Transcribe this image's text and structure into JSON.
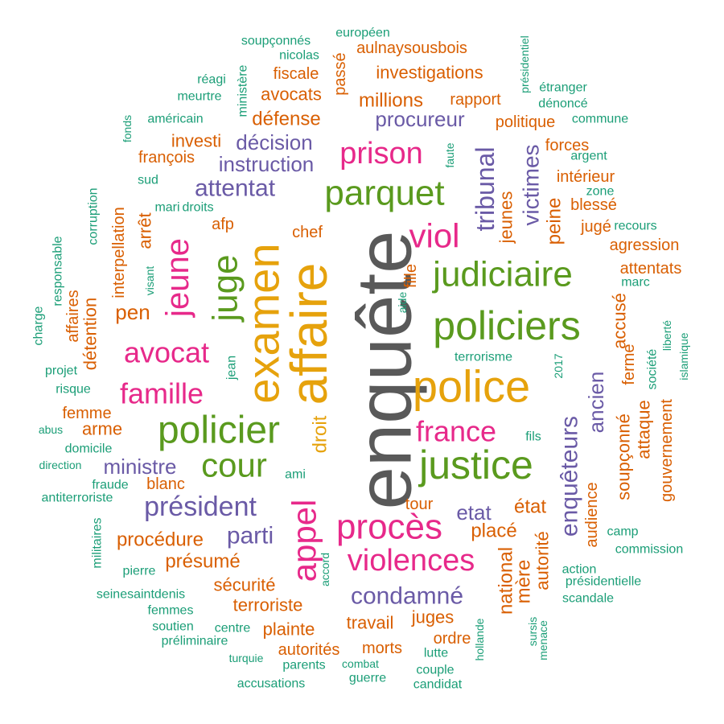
{
  "palette": {
    "grey": "#595959",
    "orange": "#d95f02",
    "green": "#1b9e77",
    "purple": "#6a5aa6",
    "magenta": "#e7298a",
    "lime": "#5a9a1e",
    "gold": "#e6a20c"
  },
  "chart_data": {
    "type": "wordcloud",
    "title": "",
    "words": [
      {
        "text": "enquête",
        "color": "grey"
      },
      {
        "text": "police",
        "color": "gold"
      },
      {
        "text": "policiers",
        "color": "lime"
      },
      {
        "text": "affaire",
        "color": "gold"
      },
      {
        "text": "justice",
        "color": "lime"
      },
      {
        "text": "policier",
        "color": "lime"
      },
      {
        "text": "examen",
        "color": "gold"
      },
      {
        "text": "judiciaire",
        "color": "lime"
      },
      {
        "text": "procès",
        "color": "magenta"
      },
      {
        "text": "violences",
        "color": "magenta"
      },
      {
        "text": "juge",
        "color": "lime"
      },
      {
        "text": "parquet",
        "color": "lime"
      },
      {
        "text": "appel",
        "color": "magenta"
      },
      {
        "text": "cour",
        "color": "lime"
      },
      {
        "text": "prison",
        "color": "magenta"
      },
      {
        "text": "viol",
        "color": "magenta"
      },
      {
        "text": "jeune",
        "color": "magenta"
      },
      {
        "text": "avocat",
        "color": "magenta"
      },
      {
        "text": "famille",
        "color": "magenta"
      },
      {
        "text": "france",
        "color": "magenta"
      },
      {
        "text": "président",
        "color": "purple"
      },
      {
        "text": "condamné",
        "color": "purple"
      },
      {
        "text": "tribunal",
        "color": "purple"
      },
      {
        "text": "enquêteurs",
        "color": "purple"
      },
      {
        "text": "attentat",
        "color": "purple"
      },
      {
        "text": "victimes",
        "color": "purple"
      },
      {
        "text": "parti",
        "color": "purple"
      },
      {
        "text": "procureur",
        "color": "purple"
      },
      {
        "text": "décision",
        "color": "purple"
      },
      {
        "text": "instruction",
        "color": "purple"
      },
      {
        "text": "ministre",
        "color": "purple"
      },
      {
        "text": "etat",
        "color": "purple"
      },
      {
        "text": "ancien",
        "color": "purple"
      },
      {
        "text": "droit",
        "color": "gold"
      },
      {
        "text": "national",
        "color": "orange"
      },
      {
        "text": "placé",
        "color": "orange"
      },
      {
        "text": "état",
        "color": "orange"
      },
      {
        "text": "autorité",
        "color": "orange"
      },
      {
        "text": "mère",
        "color": "orange"
      },
      {
        "text": "peine",
        "color": "orange"
      },
      {
        "text": "jeunes",
        "color": "orange"
      },
      {
        "text": "soupçonné",
        "color": "orange"
      },
      {
        "text": "attaque",
        "color": "orange"
      },
      {
        "text": "accusé",
        "color": "orange"
      },
      {
        "text": "pen",
        "color": "orange"
      },
      {
        "text": "procédure",
        "color": "orange"
      },
      {
        "text": "présumé",
        "color": "orange"
      },
      {
        "text": "sécurité",
        "color": "orange"
      },
      {
        "text": "terroriste",
        "color": "orange"
      },
      {
        "text": "travail",
        "color": "orange"
      },
      {
        "text": "juges",
        "color": "orange"
      },
      {
        "text": "défense",
        "color": "orange"
      },
      {
        "text": "millions",
        "color": "orange"
      },
      {
        "text": "investigations",
        "color": "orange"
      },
      {
        "text": "avocats",
        "color": "orange"
      },
      {
        "text": "rapport",
        "color": "orange"
      },
      {
        "text": "politique",
        "color": "orange"
      },
      {
        "text": "fiscale",
        "color": "orange"
      },
      {
        "text": "aulnaysousbois",
        "color": "orange"
      },
      {
        "text": "passé",
        "color": "orange"
      },
      {
        "text": "investi",
        "color": "orange"
      },
      {
        "text": "françois",
        "color": "orange"
      },
      {
        "text": "arrêt",
        "color": "orange"
      },
      {
        "text": "interpellation",
        "color": "orange"
      },
      {
        "text": "détention",
        "color": "orange"
      },
      {
        "text": "affaires",
        "color": "orange"
      },
      {
        "text": "afp",
        "color": "orange"
      },
      {
        "text": "chef",
        "color": "orange"
      },
      {
        "text": "fille",
        "color": "orange"
      },
      {
        "text": "femme",
        "color": "orange"
      },
      {
        "text": "arme",
        "color": "orange"
      },
      {
        "text": "blanc",
        "color": "orange"
      },
      {
        "text": "tour",
        "color": "orange"
      },
      {
        "text": "plainte",
        "color": "orange"
      },
      {
        "text": "autorités",
        "color": "orange"
      },
      {
        "text": "morts",
        "color": "orange"
      },
      {
        "text": "ordre",
        "color": "orange"
      },
      {
        "text": "forces",
        "color": "orange"
      },
      {
        "text": "intérieur",
        "color": "orange"
      },
      {
        "text": "blessé",
        "color": "orange"
      },
      {
        "text": "jugé",
        "color": "orange"
      },
      {
        "text": "agression",
        "color": "orange"
      },
      {
        "text": "attentats",
        "color": "orange"
      },
      {
        "text": "ferme",
        "color": "orange"
      },
      {
        "text": "gouvernement",
        "color": "orange"
      },
      {
        "text": "audience",
        "color": "orange"
      },
      {
        "text": "européen",
        "color": "green"
      },
      {
        "text": "soupçonnés",
        "color": "green"
      },
      {
        "text": "nicolas",
        "color": "green"
      },
      {
        "text": "ministère",
        "color": "green"
      },
      {
        "text": "réagi",
        "color": "green"
      },
      {
        "text": "meurtre",
        "color": "green"
      },
      {
        "text": "américain",
        "color": "green"
      },
      {
        "text": "fonds",
        "color": "green"
      },
      {
        "text": "sud",
        "color": "green"
      },
      {
        "text": "corruption",
        "color": "green"
      },
      {
        "text": "mari",
        "color": "green"
      },
      {
        "text": "droits",
        "color": "green"
      },
      {
        "text": "visant",
        "color": "green"
      },
      {
        "text": "responsable",
        "color": "green"
      },
      {
        "text": "charge",
        "color": "green"
      },
      {
        "text": "projet",
        "color": "green"
      },
      {
        "text": "risque",
        "color": "green"
      },
      {
        "text": "jean",
        "color": "green"
      },
      {
        "text": "abus",
        "color": "green"
      },
      {
        "text": "domicile",
        "color": "green"
      },
      {
        "text": "direction",
        "color": "green"
      },
      {
        "text": "fraude",
        "color": "green"
      },
      {
        "text": "ami",
        "color": "green"
      },
      {
        "text": "antiterroriste",
        "color": "green"
      },
      {
        "text": "militaires",
        "color": "green"
      },
      {
        "text": "pierre",
        "color": "green"
      },
      {
        "text": "accord",
        "color": "green"
      },
      {
        "text": "seinesaintdenis",
        "color": "green"
      },
      {
        "text": "femmes",
        "color": "green"
      },
      {
        "text": "soutien",
        "color": "green"
      },
      {
        "text": "centre",
        "color": "green"
      },
      {
        "text": "préliminaire",
        "color": "green"
      },
      {
        "text": "turquie",
        "color": "green"
      },
      {
        "text": "parents",
        "color": "green"
      },
      {
        "text": "combat",
        "color": "green"
      },
      {
        "text": "guerre",
        "color": "green"
      },
      {
        "text": "accusations",
        "color": "green"
      },
      {
        "text": "couple",
        "color": "green"
      },
      {
        "text": "candidat",
        "color": "green"
      },
      {
        "text": "lutte",
        "color": "green"
      },
      {
        "text": "hollande",
        "color": "green"
      },
      {
        "text": "sursis",
        "color": "green"
      },
      {
        "text": "menace",
        "color": "green"
      },
      {
        "text": "scandale",
        "color": "green"
      },
      {
        "text": "présidentielle",
        "color": "green"
      },
      {
        "text": "action",
        "color": "green"
      },
      {
        "text": "commission",
        "color": "green"
      },
      {
        "text": "camp",
        "color": "green"
      },
      {
        "text": "fils",
        "color": "green"
      },
      {
        "text": "2017",
        "color": "green"
      },
      {
        "text": "terrorisme",
        "color": "green"
      },
      {
        "text": "aide",
        "color": "green"
      },
      {
        "text": "faute",
        "color": "green"
      },
      {
        "text": "présidentiel",
        "color": "green"
      },
      {
        "text": "étranger",
        "color": "green"
      },
      {
        "text": "dénoncé",
        "color": "green"
      },
      {
        "text": "commune",
        "color": "green"
      },
      {
        "text": "argent",
        "color": "green"
      },
      {
        "text": "zone",
        "color": "green"
      },
      {
        "text": "recours",
        "color": "green"
      },
      {
        "text": "marc",
        "color": "green"
      },
      {
        "text": "liberté",
        "color": "green"
      },
      {
        "text": "islamique",
        "color": "green"
      },
      {
        "text": "société",
        "color": "green"
      }
    ]
  }
}
